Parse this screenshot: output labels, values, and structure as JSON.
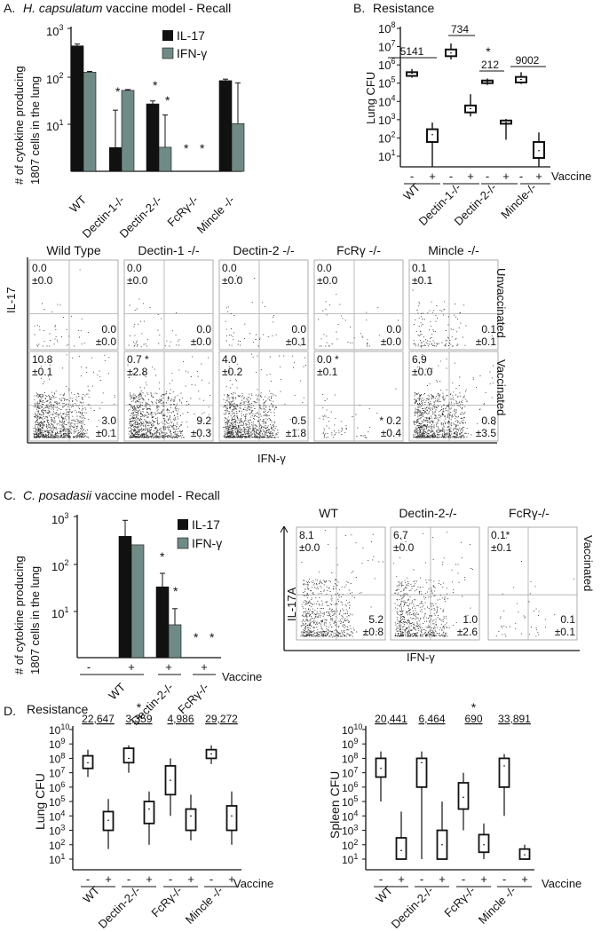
{
  "colors": {
    "il17": "#111111",
    "ifng": "#708a86"
  },
  "panelA": {
    "letter": "A.",
    "title_italic": "H. capsulatum",
    "title_rest": " vaccine model - Recall",
    "ylabel_line1": "# of  cytokine producing",
    "ylabel_line2": "1807 cells in the lung",
    "legend": [
      "IL-17",
      "IFN-γ"
    ],
    "chart_data": {
      "type": "bar",
      "yscale": "log",
      "ylim": [
        1,
        1000
      ],
      "ytick_labels": [
        "10 3",
        "10 2",
        "10 1"
      ],
      "categories": [
        "WT",
        "Dectin-1-/-",
        "Dectin-2-/-",
        "FcRγ-/-",
        "Mincle -/-"
      ],
      "series": [
        {
          "name": "IL-17",
          "values": [
            430,
            null,
            26,
            null,
            80
          ],
          "error": [
            40,
            null,
            4,
            null,
            6
          ]
        },
        {
          "name": "IFN-γ",
          "values": [
            120,
            50,
            3.2,
            null,
            10
          ],
          "error": [
            5,
            2,
            12,
            null,
            62
          ]
        }
      ],
      "il17_dectin1": 3.2,
      "il17_dectin1_err": 16,
      "stars": [
        "*",
        "*",
        "*",
        "*",
        "*"
      ]
    }
  },
  "panelB": {
    "letter": "B.",
    "title": "Resistance",
    "ylabel": "Lung CFU",
    "xlabel_vaccine": "Vaccine",
    "chart_data": {
      "type": "box",
      "yscale": "log",
      "ylim": [
        1,
        100000000
      ],
      "ytick_labels": [
        "10",
        "10",
        "10",
        "10",
        "10",
        "10",
        "10",
        "10"
      ],
      "ytick_exp": [
        "8",
        "7",
        "6",
        "5",
        "4",
        "3",
        "2",
        "1"
      ],
      "groups": [
        "WT",
        "Dectin-1-/-",
        "Dectin-2-/-",
        "Mincle-/-"
      ],
      "signs": [
        "-",
        "+"
      ],
      "annotations": [
        "5141",
        "734",
        "212",
        "9002"
      ],
      "star": "*",
      "boxes": [
        {
          "group": "WT",
          "vaccine": "-",
          "min": 200000,
          "q1": 250000,
          "median": 350000,
          "q3": 400000,
          "max": 600000
        },
        {
          "group": "WT",
          "vaccine": "+",
          "min": 1,
          "q1": 60,
          "median": 150,
          "q3": 300,
          "max": 700
        },
        {
          "group": "Dectin-1-/-",
          "vaccine": "-",
          "min": 2000000,
          "q1": 3000000,
          "median": 4500000,
          "q3": 7000000,
          "max": 15000000
        },
        {
          "group": "Dectin-1-/-",
          "vaccine": "+",
          "min": 1500,
          "q1": 2500,
          "median": 4000,
          "q3": 6000,
          "max": 25000
        },
        {
          "group": "Dectin-2-/-",
          "vaccine": "-",
          "min": 80000,
          "q1": 100000,
          "median": 120000,
          "q3": 140000,
          "max": 180000
        },
        {
          "group": "Dectin-2-/-",
          "vaccine": "+",
          "min": 80,
          "q1": 600,
          "median": 700,
          "q3": 900,
          "max": 1100
        },
        {
          "group": "Mincle-/-",
          "vaccine": "-",
          "min": 90000,
          "q1": 110000,
          "median": 160000,
          "q3": 220000,
          "max": 400000
        },
        {
          "group": "Mincle-/-",
          "vaccine": "+",
          "min": 5,
          "q1": 8,
          "median": 20,
          "q3": 60,
          "max": 200
        }
      ]
    }
  },
  "flow1": {
    "headers": [
      "Wild Type",
      "Dectin-1 -/-",
      "Dectin-2 -/-",
      "FcRγ -/-",
      "Mincle -/-"
    ],
    "rows": [
      "Unvaccinated",
      "Vaccinated"
    ],
    "ylabel": "IL-17",
    "xlabel": "IFN-γ",
    "cells": [
      [
        {
          "ul": [
            "0.0",
            "±0.0"
          ],
          "lr": [
            "0.0",
            "±0.0"
          ]
        },
        {
          "ul": [
            "0.0",
            "±0.0"
          ],
          "lr": [
            "0.0",
            "±0.0"
          ]
        },
        {
          "ul": [
            "0.0",
            "±0.0"
          ],
          "lr": [
            "0.0",
            "±0.1"
          ]
        },
        {
          "ul": [
            "0.0",
            "±0.0"
          ],
          "lr": [
            "0.0",
            "±0.0"
          ]
        },
        {
          "ul": [
            "0.1",
            "±0.1"
          ],
          "lr": [
            "0.1",
            "±0.1"
          ]
        }
      ],
      [
        {
          "ul": [
            "10.8",
            "±0.1"
          ],
          "lr": [
            "3.0",
            "±0.1"
          ]
        },
        {
          "ul": [
            "0.7 *",
            "±2.8"
          ],
          "lr": [
            "9.2",
            "±0.3"
          ]
        },
        {
          "ul": [
            "4.0",
            "±0.2"
          ],
          "lr": [
            "0.5",
            "±1.8"
          ]
        },
        {
          "ul": [
            "0.0  *",
            "±0.1"
          ],
          "lr": [
            "* 0.2",
            "±0.4"
          ]
        },
        {
          "ul": [
            "6.9",
            "±0.0"
          ],
          "lr": [
            "0.8",
            "±3.5"
          ]
        }
      ]
    ]
  },
  "panelC": {
    "letter": "C.",
    "title_italic": "C. posadasii",
    "title_rest": " vaccine model - Recall",
    "ylabel_line1": "# of  cytokine producing",
    "ylabel_line2": "1807 cells in the lung",
    "legend": [
      "IL-17",
      "IFN-γ"
    ],
    "xlabel_vaccine": "Vaccine",
    "signs": [
      "-",
      "+",
      "+",
      "+"
    ],
    "groups": [
      "WT",
      "Dectin-2-/-",
      "FcRγ-/-"
    ],
    "chart_data": {
      "type": "bar",
      "yscale": "log",
      "ylim": [
        1,
        1000
      ],
      "ytick_labels": [
        "10 3",
        "10 2",
        "10 1"
      ],
      "series": [
        {
          "name": "IL-17",
          "values": [
            null,
            380,
            32,
            null
          ],
          "error": [
            null,
            450,
            30,
            null
          ]
        },
        {
          "name": "IFN-γ",
          "values": [
            null,
            250,
            5,
            null
          ],
          "error": [
            null,
            0,
            6,
            null
          ]
        }
      ],
      "stars": [
        "*",
        "*",
        "*",
        "*"
      ]
    },
    "flow": {
      "headers": [
        "WT",
        "Dectin-2-/-",
        "FcRγ-/-"
      ],
      "row": "Vaccinated",
      "ylabel": "IL-17A",
      "xlabel": "IFN-γ",
      "cells": [
        {
          "ul": [
            "8.1",
            "±0.0"
          ],
          "lr": [
            "5.2",
            "±0.8"
          ]
        },
        {
          "ul": [
            "6.7",
            "±0.0"
          ],
          "lr": [
            "1.0",
            "±2.6"
          ]
        },
        {
          "ul": [
            "0.1*",
            "±0.1"
          ],
          "lr": [
            "0.1",
            "±0.1"
          ]
        }
      ]
    }
  },
  "panelD": {
    "letter": "D.",
    "title": "Resistance",
    "xlabel_vaccine": "Vaccine",
    "groups": [
      "WT",
      "Dectin-2-/-",
      "FcRγ-/-",
      "Mincle -/-"
    ],
    "signs": [
      "-",
      "+"
    ],
    "ytick_exp": [
      "10",
      "9",
      "8",
      "7",
      "6",
      "5",
      "4",
      "3",
      "2",
      "1"
    ],
    "lung": {
      "ylabel": "Lung CFU",
      "annotations": [
        "22,647",
        "3,359",
        "4,986",
        "29,272"
      ],
      "star": "*",
      "chart_data": {
        "type": "box",
        "yscale": "log",
        "ylim": [
          1,
          10000000000
        ],
        "boxes": [
          {
            "group": "WT",
            "vaccine": "-",
            "min": 5000000,
            "q1": 20000000,
            "median": 50000000,
            "q3": 150000000,
            "max": 400000000
          },
          {
            "group": "WT",
            "vaccine": "+",
            "min": 50,
            "q1": 1000,
            "median": 5000,
            "q3": 20000,
            "max": 150000
          },
          {
            "group": "Dectin-2-/-",
            "vaccine": "-",
            "min": 10000000,
            "q1": 50000000,
            "median": 100000000,
            "q3": 500000000,
            "max": 800000000
          },
          {
            "group": "Dectin-2-/-",
            "vaccine": "+",
            "min": 100,
            "q1": 3000,
            "median": 30000,
            "q3": 100000,
            "max": 500000
          },
          {
            "group": "FcRγ-/-",
            "vaccine": "-",
            "min": 10000,
            "q1": 300000,
            "median": 3000000,
            "q3": 30000000,
            "max": 100000000
          },
          {
            "group": "FcRγ-/-",
            "vaccine": "+",
            "min": 200,
            "q1": 1000,
            "median": 10000,
            "q3": 30000,
            "max": 300000
          },
          {
            "group": "Mincle -/-",
            "vaccine": "-",
            "min": 40000000,
            "q1": 100000000,
            "median": 200000000,
            "q3": 400000000,
            "max": 800000000
          },
          {
            "group": "Mincle -/-",
            "vaccine": "+",
            "min": 100,
            "q1": 1000,
            "median": 10000,
            "q3": 50000,
            "max": 500000
          }
        ]
      }
    },
    "spleen": {
      "ylabel": "Spleen CFU",
      "annotations": [
        "20,441",
        "6,464",
        "690",
        "33,891"
      ],
      "star": "*",
      "chart_data": {
        "type": "box",
        "yscale": "log",
        "ylim": [
          1,
          10000000000
        ],
        "boxes": [
          {
            "group": "WT",
            "vaccine": "-",
            "min": 100000,
            "q1": 5000000,
            "median": 20000000,
            "q3": 100000000,
            "max": 300000000
          },
          {
            "group": "WT",
            "vaccine": "+",
            "min": 1,
            "q1": 10,
            "median": 40,
            "q3": 300,
            "max": 20000
          },
          {
            "group": "Dectin-2-/-",
            "vaccine": "-",
            "min": 10,
            "q1": 1000000,
            "median": 50000000,
            "q3": 100000000,
            "max": 300000000
          },
          {
            "group": "Dectin-2-/-",
            "vaccine": "+",
            "min": 1,
            "q1": 10,
            "median": 100,
            "q3": 1000,
            "max": 100000
          },
          {
            "group": "FcRγ-/-",
            "vaccine": "-",
            "min": 1000,
            "q1": 30000,
            "median": 200000,
            "q3": 2000000,
            "max": 10000000
          },
          {
            "group": "FcRγ-/-",
            "vaccine": "+",
            "min": 5,
            "q1": 30,
            "median": 100,
            "q3": 500,
            "max": 3000
          },
          {
            "group": "Mincle -/-",
            "vaccine": "-",
            "min": 10000,
            "q1": 1000000,
            "median": 30000000,
            "q3": 100000000,
            "max": 200000000
          },
          {
            "group": "Mincle -/-",
            "vaccine": "+",
            "min": 1,
            "q1": 10,
            "median": 20,
            "q3": 50,
            "max": 100
          }
        ]
      }
    }
  }
}
